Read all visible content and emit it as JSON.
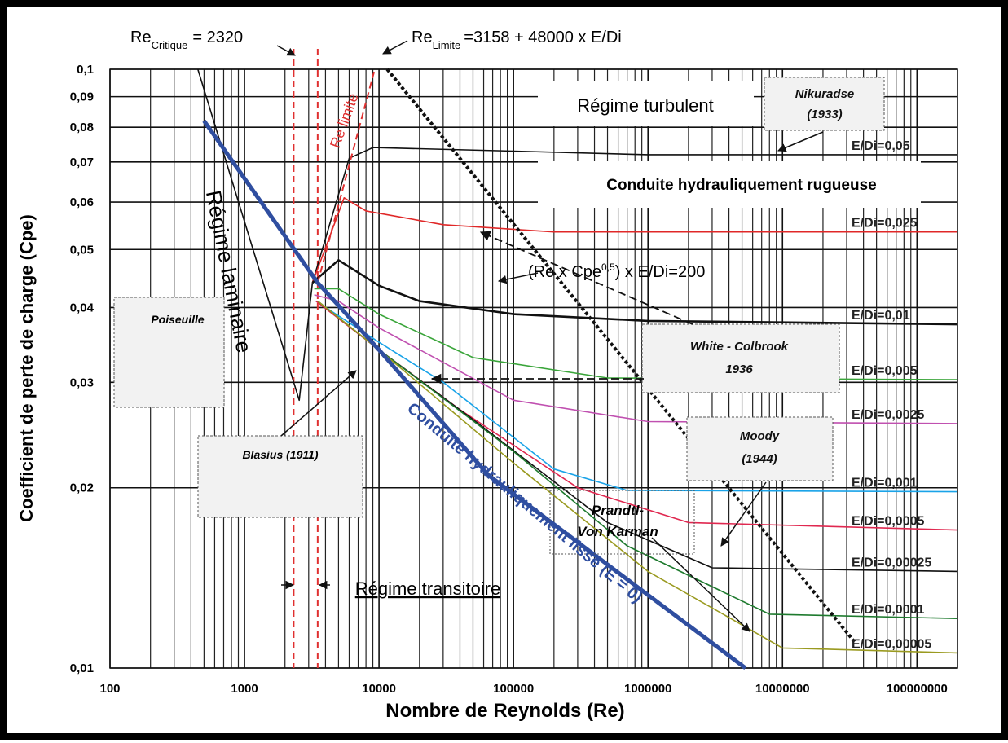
{
  "chart_data": {
    "type": "line",
    "log_x": true,
    "log_y": true,
    "grid": true,
    "xlabel": "Nombre de Reynolds (Re)",
    "ylabel": "Coefficient de perte de charge (Cpe)",
    "xlim": [
      100,
      200000000
    ],
    "ylim": [
      0.01,
      0.1
    ],
    "xticks": [
      100,
      1000,
      10000,
      100000,
      1000000,
      10000000,
      100000000
    ],
    "yticks": [
      {
        "value": 0.01,
        "label": "0,01"
      },
      {
        "value": 0.02,
        "label": "0,02"
      },
      {
        "value": 0.03,
        "label": "0,03"
      },
      {
        "value": 0.04,
        "label": "0,04"
      },
      {
        "value": 0.05,
        "label": "0,05"
      },
      {
        "value": 0.06,
        "label": "0,06"
      },
      {
        "value": 0.07,
        "label": "0,07"
      },
      {
        "value": 0.08,
        "label": "0,08"
      },
      {
        "value": 0.09,
        "label": "0,09"
      },
      {
        "value": 0.1,
        "label": "0,1"
      }
    ],
    "reference_lines": [
      {
        "value": 2320,
        "color": "#e03030"
      },
      {
        "value": 3500,
        "color": "#e03030"
      }
    ],
    "series": [
      {
        "name": "E/Di=0,05",
        "color": "#111111",
        "style": "thin",
        "x": [
          3200,
          6000,
          9000,
          100000,
          1000000,
          200000000
        ],
        "values": [
          0.044,
          0.071,
          0.074,
          0.073,
          0.072,
          0.072
        ]
      },
      {
        "name": "E/Di=0,025",
        "color": "#e02828",
        "style": "thin",
        "x": [
          3200,
          5500,
          8000,
          30000,
          200000,
          200000000
        ],
        "values": [
          0.044,
          0.061,
          0.058,
          0.055,
          0.0535,
          0.0535
        ]
      },
      {
        "name": "E/Di=0,01",
        "color": "#111111",
        "style": "medium",
        "x": [
          3200,
          5000,
          10000,
          20000,
          100000,
          1000000,
          200000000
        ],
        "values": [
          0.044,
          0.048,
          0.0435,
          0.041,
          0.039,
          0.038,
          0.0375
        ]
      },
      {
        "name": "E/Di=0,005",
        "color": "#3aa53a",
        "style": "thin",
        "x": [
          3300,
          5000,
          10000,
          50000,
          500000,
          200000000
        ],
        "values": [
          0.043,
          0.043,
          0.039,
          0.033,
          0.0305,
          0.0303
        ]
      },
      {
        "name": "E/Di=0,0025",
        "color": "#c050b0",
        "style": "thin",
        "x": [
          3300,
          5000,
          10000,
          100000,
          1000000,
          200000000
        ],
        "values": [
          0.042,
          0.041,
          0.037,
          0.028,
          0.0258,
          0.0256
        ]
      },
      {
        "name": "E/Di=0,001",
        "color": "#1aa3e8",
        "style": "thin",
        "x": [
          3400,
          10000,
          30000,
          200000,
          700000,
          200000000
        ],
        "values": [
          0.041,
          0.035,
          0.03,
          0.0215,
          0.0198,
          0.0197
        ]
      },
      {
        "name": "E/Di=0,0005",
        "color": "#e02850",
        "style": "thin",
        "x": [
          3400,
          10000,
          40000,
          300000,
          2000000,
          200000000
        ],
        "values": [
          0.041,
          0.034,
          0.027,
          0.02,
          0.0175,
          0.017
        ]
      },
      {
        "name": "E/Di=0,00025",
        "color": "#111111",
        "style": "thin",
        "x": [
          3500,
          10000,
          50000,
          500000,
          3000000,
          200000000
        ],
        "values": [
          0.041,
          0.034,
          0.026,
          0.0175,
          0.0147,
          0.0145
        ]
      },
      {
        "name": "E/Di=0,0001",
        "color": "#1e7a2e",
        "style": "thin",
        "x": [
          3500,
          10000,
          100000,
          700000,
          8000000,
          200000000
        ],
        "values": [
          0.041,
          0.034,
          0.023,
          0.016,
          0.0123,
          0.0121
        ]
      },
      {
        "name": "E/Di=0,00005",
        "color": "#9a9a20",
        "style": "thin",
        "x": [
          3500,
          10000,
          100000,
          1000000,
          10000000,
          200000000
        ],
        "values": [
          0.041,
          0.034,
          0.022,
          0.0145,
          0.0108,
          0.0106
        ]
      },
      {
        "color": "#111111",
        "style": "thin",
        "x": [
          450,
          2550,
          3200
        ],
        "values": [
          0.1,
          0.028,
          0.044
        ]
      },
      {
        "color": "#e03030",
        "style": "dashed",
        "x": [
          3500,
          9300
        ],
        "values": [
          0.044,
          0.1
        ]
      },
      {
        "color": "#111111",
        "style": "dotted",
        "x": [
          11500,
          35000000
        ],
        "values": [
          0.1,
          0.011
        ]
      },
      {
        "color": "#2f4ea0",
        "style": "thick",
        "x": [
          500,
          3500,
          10000,
          65000,
          5300000
        ],
        "values": [
          0.082,
          0.044,
          0.034,
          0.021,
          0.01
        ]
      }
    ],
    "annotations": {
      "re_critique": {
        "base": "Re",
        "sub": "Critique",
        "rest": "= 2320"
      },
      "re_limite": {
        "base": "Re",
        "sub": "Limite",
        "rest": "=3158 + 48000 x E/Di"
      },
      "re_limite_curve": "Re limite",
      "regime_turbulent": "Régime turbulent",
      "nikuradse": [
        "Nikuradse",
        "(1933)"
      ],
      "rugueuse": "Conduite hydrauliquement rugueuse",
      "boundary": {
        "base": "(Re x Cpe",
        "sup": "0,5",
        "rest": ") x E/Di=200"
      },
      "white_colbrook": [
        "White - Colbrook",
        "1936"
      ],
      "moody": [
        "Moody",
        "(1944)"
      ],
      "blasius": "Blasius (1911)",
      "poiseuille": "Poiseuille",
      "prandtl": [
        "Prandtl-",
        "Von Karman"
      ],
      "laminaire": "Régime laminaire",
      "lisse": "Conduite hydrauliquement lisse (E = 0)",
      "transitoire": "Régime transitoire"
    }
  }
}
